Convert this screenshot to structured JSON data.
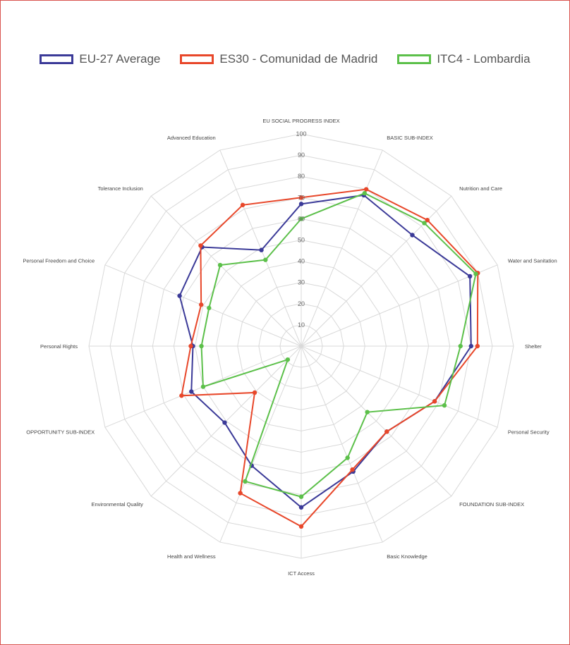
{
  "legend": {
    "items": [
      {
        "label": "EU-27 Average",
        "color": "#3b3a98"
      },
      {
        "label": "ES30 - Comunidad de Madrid",
        "color": "#e8472a"
      },
      {
        "label": "ITC4 - Lombardia",
        "color": "#5cc04a"
      }
    ]
  },
  "chart_data": {
    "type": "radar",
    "range": [
      0,
      100
    ],
    "ticks": [
      10,
      20,
      30,
      40,
      50,
      60,
      70,
      80,
      90,
      100
    ],
    "grid": true,
    "legend_position": "top",
    "categories": [
      "EU SOCIAL PROGRESS INDEX",
      "BASIC SUB-INDEX",
      "Nutrition and Care",
      "Water and Sanitation",
      "Shelter",
      "Personal Security",
      "FOUNDATION SUB-INDEX",
      "Basic Knowledge",
      "ICT Access",
      "Health and Wellness",
      "Environmental Quality",
      "OPPORTUNITY SUB-INDEX",
      "Personal Rights",
      "Personal Freedom and Choice",
      "Tolerance Inclusion",
      "Advanced Education"
    ],
    "series": [
      {
        "name": "EU-27 Average",
        "color": "#3b3a98",
        "values": [
          67,
          77,
          74,
          86,
          80,
          68,
          57,
          64,
          76,
          61,
          51,
          56,
          51,
          62,
          66,
          49
        ]
      },
      {
        "name": "ES30 - Comunidad de Madrid",
        "color": "#e8472a",
        "values": [
          70,
          80,
          84,
          90,
          83,
          68,
          57,
          63,
          85,
          75,
          31,
          61,
          52,
          51,
          67,
          72
        ]
      },
      {
        "name": "ITC4 - Lombardia",
        "color": "#5cc04a",
        "values": [
          60,
          78,
          82,
          89,
          75,
          73,
          44,
          57,
          71,
          69,
          9,
          50,
          47,
          47,
          54,
          44
        ]
      }
    ]
  }
}
